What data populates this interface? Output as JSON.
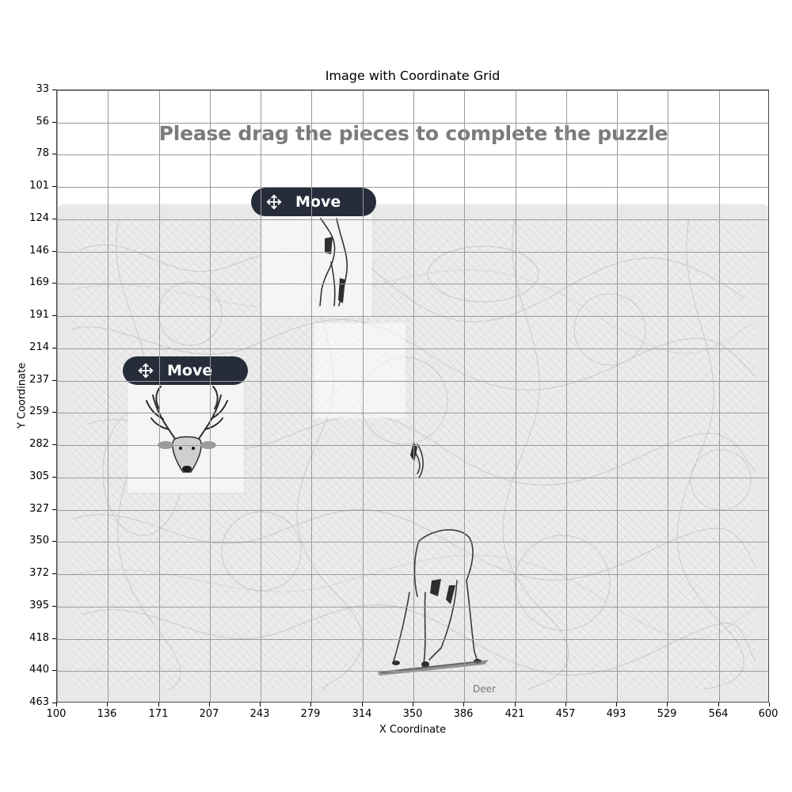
{
  "chart": {
    "title": "Image with Coordinate Grid",
    "xlabel": "X Coordinate",
    "ylabel": "Y Coordinate",
    "x_ticks": [
      "100",
      "136",
      "171",
      "207",
      "243",
      "279",
      "314",
      "350",
      "386",
      "421",
      "457",
      "493",
      "529",
      "564",
      "600"
    ],
    "y_ticks": [
      "33",
      "56",
      "78",
      "101",
      "124",
      "146",
      "169",
      "191",
      "214",
      "237",
      "259",
      "282",
      "305",
      "327",
      "350",
      "372",
      "395",
      "418",
      "440",
      "463"
    ]
  },
  "captcha": {
    "instruction": "Please drag the pieces to complete the puzzle",
    "caption": "Deer",
    "pieces": [
      {
        "button_label": "Move",
        "button_icon": "move-arrows-icon",
        "content": "deer-legs-fragment"
      },
      {
        "button_label": "Move",
        "button_icon": "move-arrows-icon",
        "content": "deer-head-antlers"
      }
    ]
  },
  "colors": {
    "button_bg": "#272c3a",
    "instruction_text": "#7b7b7b",
    "panel_bg": "#e8e8e8",
    "grid_line": "#9a9a9a"
  }
}
